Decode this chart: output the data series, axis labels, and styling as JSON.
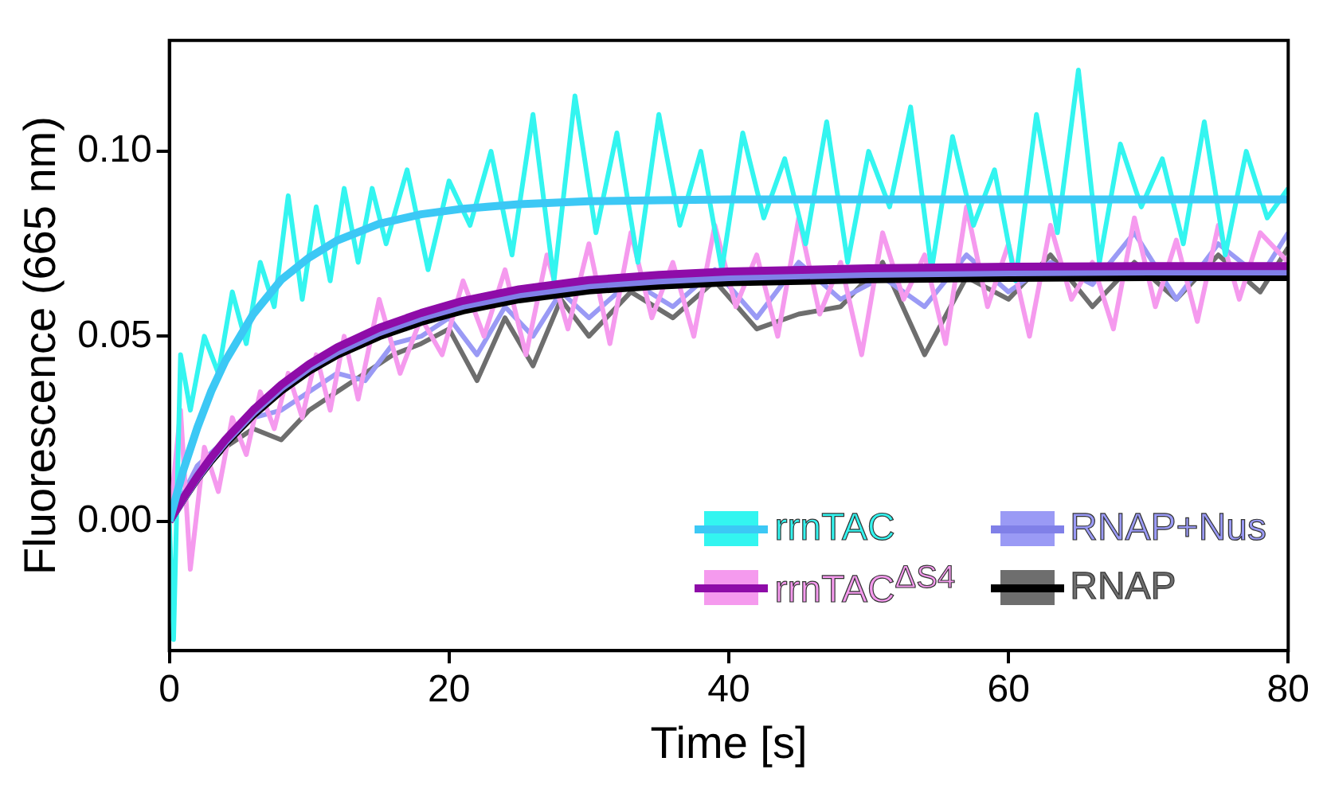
{
  "chart_data": {
    "type": "line",
    "xlabel": "Time [s]",
    "ylabel": "Fluorescence (665 nm)",
    "xlim": [
      0,
      80
    ],
    "xticks": [
      0,
      20,
      40,
      60,
      80
    ],
    "ylim": [
      -0.035,
      0.13
    ],
    "yticks": [
      {
        "value": 0,
        "label": "0.00"
      },
      {
        "value": 0.05,
        "label": "0.05"
      },
      {
        "value": 0.1,
        "label": "0.10"
      }
    ],
    "grid": false,
    "legend": "bottom right",
    "marker": "none",
    "line_style": "solid",
    "series": [
      {
        "name": "rrnTAC",
        "color": "#3cc8f5",
        "x": [
          0,
          1,
          2,
          3,
          4,
          6,
          8,
          10,
          12,
          15,
          18,
          21,
          25,
          30,
          35,
          40,
          50,
          60,
          70,
          80
        ],
        "values": [
          0,
          0.0138,
          0.0253,
          0.0352,
          0.0433,
          0.056,
          0.0653,
          0.0713,
          0.0759,
          0.0804,
          0.083,
          0.0845,
          0.0857,
          0.0865,
          0.0868,
          0.087,
          0.087,
          0.087,
          0.087,
          0.087
        ]
      },
      {
        "name": "rrnTAC$^{ΔS4}$",
        "color": "#8e0ca8",
        "x": [
          0,
          1,
          2,
          3,
          4,
          6,
          8,
          10,
          12,
          15,
          18,
          21,
          25,
          30,
          35,
          40,
          50,
          60,
          70,
          80
        ],
        "values": [
          0,
          0.0063,
          0.0121,
          0.0173,
          0.022,
          0.0301,
          0.0369,
          0.0425,
          0.047,
          0.0523,
          0.0563,
          0.0596,
          0.0627,
          0.0652,
          0.0666,
          0.0675,
          0.0684,
          0.0688,
          0.069,
          0.069
        ]
      },
      {
        "name": "RNAP+Nus",
        "color": "#8080e8",
        "x": [
          0,
          1,
          2,
          3,
          4,
          6,
          8,
          10,
          12,
          15,
          18,
          21,
          25,
          30,
          35,
          40,
          50,
          60,
          70,
          80
        ],
        "values": [
          0,
          0.0061,
          0.0118,
          0.0169,
          0.0215,
          0.0294,
          0.0361,
          0.0416,
          0.0459,
          0.0511,
          0.0551,
          0.0583,
          0.0613,
          0.0638,
          0.0651,
          0.066,
          0.0669,
          0.0673,
          0.0675,
          0.0675
        ]
      },
      {
        "name": "RNAP",
        "color": "#000000",
        "x": [
          0,
          1,
          2,
          3,
          4,
          6,
          8,
          10,
          12,
          15,
          18,
          21,
          25,
          30,
          35,
          40,
          50,
          60,
          70,
          80
        ],
        "values": [
          0,
          0.006,
          0.0116,
          0.0165,
          0.021,
          0.0288,
          0.0353,
          0.0407,
          0.045,
          0.05,
          0.0539,
          0.057,
          0.06,
          0.0624,
          0.0637,
          0.0646,
          0.0654,
          0.0658,
          0.066,
          0.066
        ]
      },
      {
        "color": "#33f5f0",
        "x": [
          0,
          0.3,
          0.8,
          1.5,
          2.5,
          3.5,
          4.5,
          5.5,
          6.5,
          7.5,
          8.5,
          9.5,
          10.5,
          11.5,
          12.5,
          13.5,
          14.5,
          15.5,
          17,
          18.5,
          20,
          21.5,
          23,
          24.5,
          26,
          27.5,
          29,
          30.5,
          32,
          33.5,
          35,
          36.5,
          38,
          39.5,
          41,
          42.5,
          44,
          45.5,
          47,
          48.5,
          50,
          51.5,
          53,
          54.5,
          56,
          57.5,
          59,
          60.5,
          62,
          63.5,
          65,
          66.5,
          68,
          69.5,
          71,
          72.5,
          74,
          75.5,
          77,
          78.5,
          80
        ],
        "values": [
          0,
          -0.032,
          0.045,
          0.03,
          0.05,
          0.04,
          0.062,
          0.048,
          0.07,
          0.058,
          0.088,
          0.06,
          0.085,
          0.065,
          0.09,
          0.07,
          0.09,
          0.075,
          0.095,
          0.068,
          0.092,
          0.08,
          0.1,
          0.072,
          0.11,
          0.065,
          0.115,
          0.078,
          0.105,
          0.07,
          0.11,
          0.08,
          0.1,
          0.068,
          0.105,
          0.082,
          0.098,
          0.075,
          0.108,
          0.07,
          0.1,
          0.085,
          0.112,
          0.068,
          0.104,
          0.08,
          0.095,
          0.065,
          0.11,
          0.078,
          0.122,
          0.07,
          0.102,
          0.085,
          0.098,
          0.075,
          0.108,
          0.072,
          0.1,
          0.082,
          0.09
        ]
      },
      {
        "color": "#f59aee",
        "x": [
          0,
          0.8,
          1.5,
          2.5,
          3.5,
          4.5,
          5.5,
          6.5,
          7.5,
          8.5,
          9.5,
          10.5,
          11.5,
          12.5,
          13.5,
          15,
          16.5,
          18,
          19.5,
          21,
          22.5,
          24,
          25.5,
          27,
          28.5,
          30,
          31.5,
          33,
          34.5,
          36,
          37.5,
          39,
          40.5,
          42,
          43.5,
          45,
          46.5,
          48,
          49.5,
          51,
          52.5,
          54,
          55.5,
          57,
          58.5,
          60,
          61.5,
          63,
          64.5,
          66,
          67.5,
          69,
          70.5,
          72,
          73.5,
          75,
          76.5,
          78,
          80
        ],
        "values": [
          0,
          0.03,
          -0.013,
          0.02,
          0.008,
          0.028,
          0.018,
          0.035,
          0.025,
          0.04,
          0.028,
          0.045,
          0.03,
          0.05,
          0.033,
          0.06,
          0.04,
          0.055,
          0.045,
          0.065,
          0.05,
          0.068,
          0.045,
          0.072,
          0.052,
          0.075,
          0.048,
          0.078,
          0.055,
          0.07,
          0.05,
          0.08,
          0.058,
          0.072,
          0.05,
          0.082,
          0.056,
          0.07,
          0.045,
          0.078,
          0.06,
          0.072,
          0.048,
          0.085,
          0.058,
          0.075,
          0.05,
          0.08,
          0.06,
          0.07,
          0.052,
          0.082,
          0.058,
          0.076,
          0.054,
          0.08,
          0.06,
          0.078,
          0.07
        ]
      },
      {
        "color": "#9a9af5",
        "x": [
          0,
          2,
          4,
          6,
          8,
          10,
          12,
          14,
          16,
          18,
          20,
          22,
          24,
          26,
          28,
          30,
          33,
          36,
          39,
          42,
          45,
          48,
          51,
          54,
          57,
          60,
          63,
          66,
          69,
          72,
          75,
          78,
          80
        ],
        "values": [
          0,
          0.015,
          0.022,
          0.028,
          0.03,
          0.035,
          0.04,
          0.038,
          0.048,
          0.05,
          0.055,
          0.045,
          0.058,
          0.05,
          0.062,
          0.055,
          0.065,
          0.058,
          0.068,
          0.055,
          0.07,
          0.06,
          0.066,
          0.058,
          0.072,
          0.062,
          0.07,
          0.064,
          0.078,
          0.06,
          0.075,
          0.066,
          0.078
        ]
      },
      {
        "color": "#6e6e6e",
        "x": [
          0,
          2,
          4,
          6,
          8,
          10,
          12,
          14,
          16,
          18,
          20,
          22,
          24,
          26,
          28,
          30,
          33,
          36,
          39,
          42,
          45,
          48,
          51,
          54,
          57,
          60,
          63,
          66,
          69,
          72,
          75,
          78,
          80
        ],
        "values": [
          0,
          0.012,
          0.02,
          0.025,
          0.022,
          0.03,
          0.035,
          0.04,
          0.045,
          0.048,
          0.052,
          0.038,
          0.055,
          0.042,
          0.06,
          0.05,
          0.062,
          0.055,
          0.065,
          0.052,
          0.056,
          0.058,
          0.07,
          0.045,
          0.066,
          0.06,
          0.072,
          0.058,
          0.07,
          0.06,
          0.072,
          0.062,
          0.074
        ]
      }
    ]
  }
}
